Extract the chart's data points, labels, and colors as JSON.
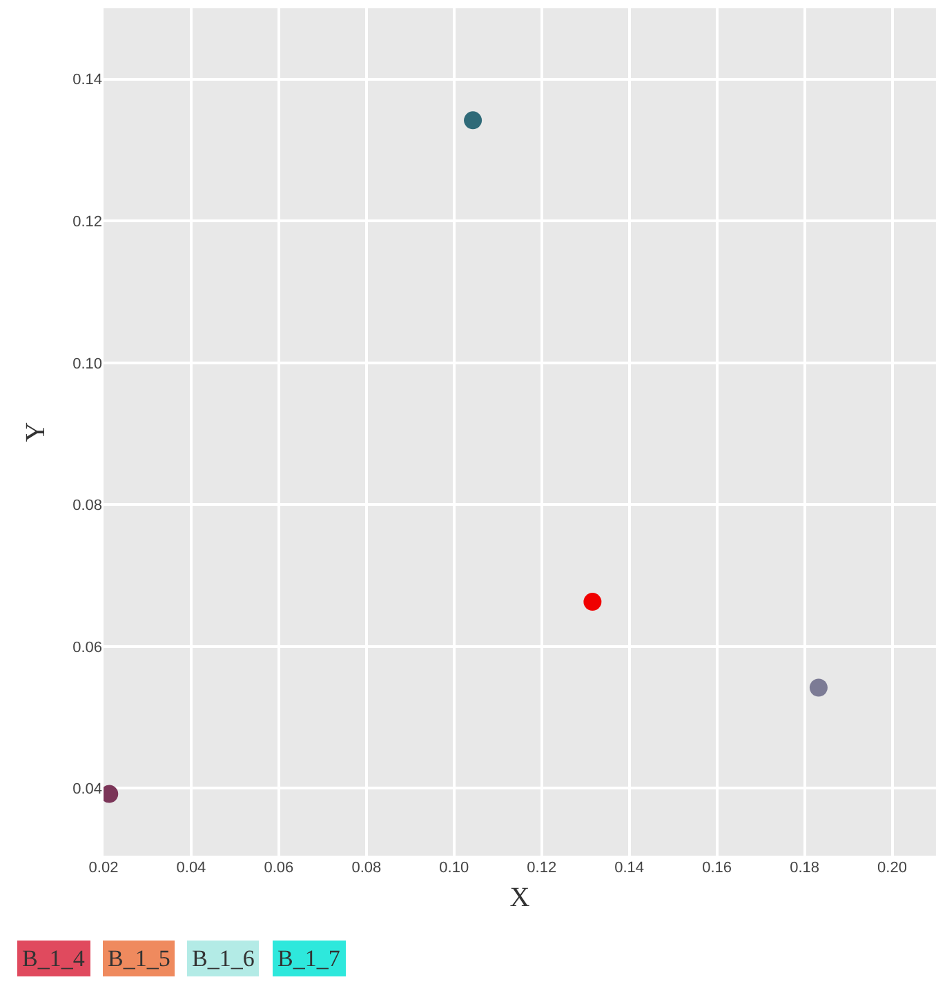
{
  "chart_data": {
    "type": "scatter",
    "xlabel": "X",
    "ylabel": "Y",
    "series": [
      {
        "x": [
          0.0213,
          0.1043,
          0.1316,
          0.1832
        ],
        "values": [
          0.0392,
          0.1342,
          0.0663,
          0.0542
        ],
        "colors": [
          "#7b3558",
          "#2f6a78",
          "#f00000",
          "#7c7b95"
        ]
      }
    ],
    "xlim": [
      0.02,
      0.21
    ],
    "xticks": [
      {
        "value": 0.02,
        "label": "0.02"
      },
      {
        "value": 0.04,
        "label": "0.04"
      },
      {
        "value": 0.06,
        "label": "0.06"
      },
      {
        "value": 0.08,
        "label": "0.08"
      },
      {
        "value": 0.1,
        "label": "0.10"
      },
      {
        "value": 0.12,
        "label": "0.12"
      },
      {
        "value": 0.14,
        "label": "0.14"
      },
      {
        "value": 0.16,
        "label": "0.16"
      },
      {
        "value": 0.18,
        "label": "0.18"
      },
      {
        "value": 0.2,
        "label": "0.20"
      }
    ],
    "ylim": [
      0.0305,
      0.15
    ],
    "yticks": [
      {
        "value": 0.04,
        "label": "0.04"
      },
      {
        "value": 0.06,
        "label": "0.06"
      },
      {
        "value": 0.08,
        "label": "0.08"
      },
      {
        "value": 0.1,
        "label": "0.10"
      },
      {
        "value": 0.12,
        "label": "0.12"
      },
      {
        "value": 0.14,
        "label": "0.14"
      }
    ],
    "grid": true,
    "marker": "circle",
    "annotations": [
      "B_1_4",
      "B_1_5",
      "B_1_6",
      "B_1_7"
    ]
  }
}
